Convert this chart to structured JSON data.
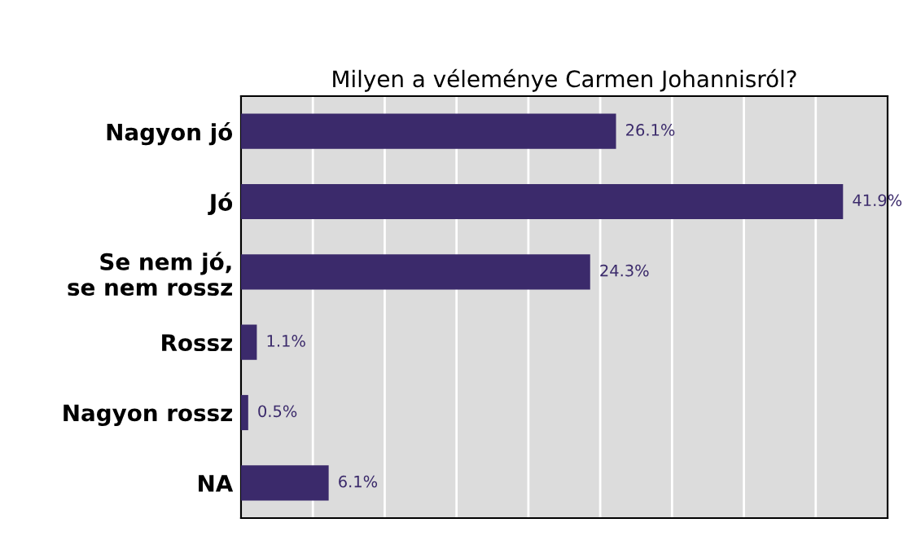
{
  "chart_data": {
    "type": "bar",
    "orientation": "horizontal",
    "title": "Milyen a véleménye Carmen Johannisról?",
    "categories": [
      "Nagyon jó",
      "Jó",
      "Se nem jó,\nse nem rossz",
      "Rossz",
      "Nagyon rossz",
      "NA"
    ],
    "values": [
      26.1,
      41.9,
      24.3,
      1.1,
      0.5,
      6.1
    ],
    "value_labels": [
      "26.1%",
      "41.9%",
      "24.3%",
      "1.1%",
      "0.5%",
      "6.1%"
    ],
    "color": "#3b2a6b",
    "xlim": [
      0,
      45
    ],
    "xticks": [
      {
        "value": 0,
        "label": null
      },
      {
        "value": 5,
        "label": null
      },
      {
        "value": 10,
        "label": null
      },
      {
        "value": 15,
        "label": null
      },
      {
        "value": 20,
        "label": null
      },
      {
        "value": 25,
        "label": null
      },
      {
        "value": 30,
        "label": null
      },
      {
        "value": 35,
        "label": null
      },
      {
        "value": 40,
        "label": null
      },
      {
        "value": 45,
        "label": null
      }
    ],
    "tick_labels": "y",
    "grid": "x",
    "legend": false
  }
}
